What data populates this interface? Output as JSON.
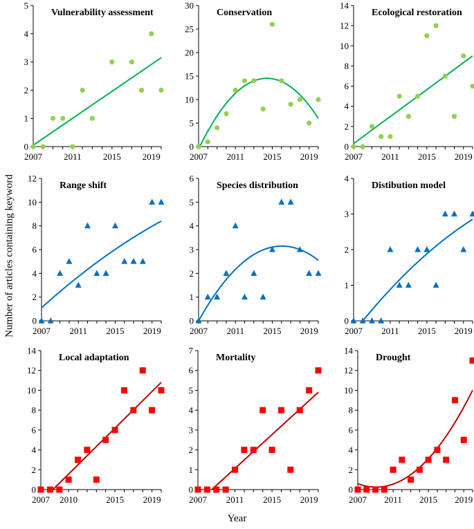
{
  "figure": {
    "ylabel": "Number of articles containing keyword",
    "xlabel": "Year"
  },
  "chart_data": [
    {
      "type": "scatter",
      "title": "Vulnerability assessment",
      "marker": "circle",
      "color": "#92D050",
      "trend_color": "#00B050",
      "x": [
        2007,
        2008,
        2009,
        2010,
        2011,
        2012,
        2013,
        2015,
        2017,
        2018,
        2019,
        2020
      ],
      "y": [
        0,
        0,
        1,
        1,
        0,
        2,
        1,
        3,
        3,
        2,
        4,
        2
      ],
      "trend": {
        "kind": "linear",
        "points": [
          [
            2007,
            0.05
          ],
          [
            2020,
            3.15
          ]
        ]
      },
      "xlim": [
        2007,
        2020
      ],
      "ylim": [
        0,
        5
      ],
      "yticks": [
        0,
        1,
        2,
        3,
        4,
        5
      ],
      "xticks": [
        2007,
        2011,
        2015,
        2019
      ],
      "xticklabels": [
        "2007",
        "2011",
        "2015",
        "2019"
      ]
    },
    {
      "type": "scatter",
      "title": "Conservation",
      "marker": "circle",
      "color": "#92D050",
      "trend_color": "#00B050",
      "x": [
        2007,
        2008,
        2009,
        2010,
        2011,
        2012,
        2013,
        2014,
        2015,
        2016,
        2017,
        2018,
        2019,
        2020
      ],
      "y": [
        0,
        1,
        4,
        7,
        12,
        14,
        14,
        8,
        26,
        14,
        9,
        10,
        5,
        10
      ],
      "trend": {
        "kind": "quadratic",
        "points": [
          [
            2007,
            -0.5
          ],
          [
            2014.7,
            14.5
          ],
          [
            2020,
            6
          ]
        ]
      },
      "xlim": [
        2007,
        2020
      ],
      "ylim": [
        0,
        30
      ],
      "yticks": [
        0,
        5,
        10,
        15,
        20,
        25,
        30
      ],
      "xticks": [
        2007,
        2011,
        2015,
        2019
      ],
      "xticklabels": [
        "2007",
        "2011",
        "2015",
        "2019"
      ]
    },
    {
      "type": "scatter",
      "title": "Ecological restoration",
      "marker": "circle",
      "color": "#92D050",
      "trend_color": "#00B050",
      "x": [
        2007,
        2008,
        2009,
        2010,
        2011,
        2012,
        2013,
        2014,
        2015,
        2016,
        2017,
        2018,
        2019,
        2020
      ],
      "y": [
        0,
        0,
        2,
        1,
        1,
        5,
        3,
        5,
        11,
        12,
        7,
        3,
        9,
        6
      ],
      "trend": {
        "kind": "linear",
        "points": [
          [
            2007,
            0.3
          ],
          [
            2020,
            9.0
          ]
        ]
      },
      "xlim": [
        2007,
        2020
      ],
      "ylim": [
        0,
        14
      ],
      "yticks": [
        0,
        2,
        4,
        6,
        8,
        10,
        12,
        14
      ],
      "xticks": [
        2007,
        2011,
        2015,
        2019
      ],
      "xticklabels": [
        "2007",
        "2011",
        "2015",
        "2019"
      ]
    },
    {
      "type": "scatter",
      "title": "Range shift",
      "marker": "triangle",
      "color": "#0070C0",
      "trend_color": "#0070C0",
      "x": [
        2007,
        2008,
        2009,
        2010,
        2011,
        2012,
        2013,
        2014,
        2015,
        2016,
        2017,
        2018,
        2019,
        2020
      ],
      "y": [
        0,
        0,
        4,
        5,
        3,
        8,
        4,
        4,
        8,
        5,
        5,
        5,
        10,
        10
      ],
      "trend": {
        "kind": "quadratic",
        "points": [
          [
            2007,
            1.1
          ],
          [
            2013.5,
            5.2
          ],
          [
            2020,
            8.4
          ]
        ]
      },
      "xlim": [
        2007,
        2020
      ],
      "ylim": [
        0,
        12
      ],
      "yticks": [
        0,
        2,
        4,
        6,
        8,
        10,
        12
      ],
      "xticks": [
        2007,
        2011,
        2015,
        2019
      ],
      "xticklabels": [
        "2007",
        "2011",
        "2015",
        "2019"
      ]
    },
    {
      "type": "scatter",
      "title": "Species distribution",
      "marker": "triangle",
      "color": "#0070C0",
      "trend_color": "#0070C0",
      "x": [
        2007,
        2008,
        2009,
        2010,
        2011,
        2012,
        2013,
        2014,
        2015,
        2016,
        2017,
        2018,
        2019,
        2020
      ],
      "y": [
        0,
        1,
        1,
        2,
        4,
        1,
        2,
        1,
        3,
        5,
        5,
        3,
        2,
        2
      ],
      "trend": {
        "kind": "quadratic",
        "points": [
          [
            2007,
            0.0
          ],
          [
            2016,
            3.15
          ],
          [
            2020,
            2.55
          ]
        ]
      },
      "xlim": [
        2007,
        2020
      ],
      "ylim": [
        0,
        6
      ],
      "yticks": [
        0,
        1,
        2,
        3,
        4,
        5,
        6
      ],
      "xticks": [
        2007,
        2011,
        2015,
        2019
      ],
      "xticklabels": [
        "2007",
        "2011",
        "2015",
        "2019"
      ]
    },
    {
      "type": "scatter",
      "title": "Distibution model",
      "marker": "triangle",
      "color": "#0070C0",
      "trend_color": "#0070C0",
      "x": [
        2007,
        2008,
        2009,
        2010,
        2011,
        2012,
        2013,
        2014,
        2015,
        2016,
        2017,
        2018,
        2019,
        2020
      ],
      "y": [
        0,
        0,
        0,
        0,
        2,
        1,
        1,
        2,
        2,
        1,
        3,
        3,
        2,
        3
      ],
      "trend": {
        "kind": "quadratic",
        "points": [
          [
            2008,
            0.0
          ],
          [
            2014,
            1.65
          ],
          [
            2020,
            2.85
          ]
        ]
      },
      "xlim": [
        2007,
        2020
      ],
      "ylim": [
        0,
        4
      ],
      "yticks": [
        0,
        1,
        2,
        3,
        4
      ],
      "xticks": [
        2007,
        2011,
        2015,
        2019
      ],
      "xticklabels": [
        "2007",
        "2011",
        "2015",
        "2019"
      ]
    },
    {
      "type": "scatter",
      "title": "Local adaptation",
      "marker": "square",
      "color": "#FF0000",
      "trend_color": "#C00000",
      "x": [
        2007,
        2008,
        2009,
        2010,
        2011,
        2012,
        2013,
        2014,
        2015,
        2016,
        2017,
        2018,
        2019,
        2020
      ],
      "y": [
        0,
        0,
        0,
        1,
        3,
        4,
        1,
        5,
        6,
        10,
        8,
        12,
        8,
        10
      ],
      "trend": {
        "kind": "linear",
        "points": [
          [
            2008.3,
            0
          ],
          [
            2020,
            10.8
          ]
        ]
      },
      "xlim": [
        2007,
        2020
      ],
      "ylim": [
        0,
        14
      ],
      "yticks": [
        0,
        2,
        4,
        6,
        8,
        10,
        12,
        14
      ],
      "xticks": [
        2007,
        2010,
        2015,
        2019
      ],
      "xticklabels": [
        "2007",
        "2010",
        "2015",
        "2019"
      ]
    },
    {
      "type": "scatter",
      "title": "Mortality",
      "marker": "square",
      "color": "#FF0000",
      "trend_color": "#C00000",
      "x": [
        2007,
        2008,
        2009,
        2010,
        2011,
        2012,
        2013,
        2014,
        2015,
        2016,
        2017,
        2018,
        2019,
        2020
      ],
      "y": [
        0,
        0,
        0,
        0,
        1,
        2,
        2,
        4,
        2,
        4,
        1,
        4,
        5,
        6
      ],
      "trend": {
        "kind": "linear",
        "points": [
          [
            2008.5,
            0
          ],
          [
            2020,
            4.9
          ]
        ]
      },
      "xlim": [
        2007,
        2020
      ],
      "ylim": [
        0,
        7
      ],
      "yticks": [
        0,
        1,
        2,
        3,
        4,
        5,
        6,
        7
      ],
      "xticks": [
        2007,
        2011,
        2015,
        2019
      ],
      "xticklabels": [
        "2007",
        "2011",
        "2015",
        "2019"
      ]
    },
    {
      "type": "scatter",
      "title": "Drought",
      "marker": "square",
      "color": "#FF0000",
      "trend_color": "#C00000",
      "x": [
        2007,
        2008,
        2009,
        2010,
        2011,
        2012,
        2013,
        2014,
        2015,
        2016,
        2017,
        2018,
        2019,
        2020
      ],
      "y": [
        0,
        0,
        0,
        0,
        2,
        3,
        1,
        2,
        3,
        4,
        3,
        9,
        5,
        13
      ],
      "trend": {
        "kind": "quadratic",
        "points": [
          [
            2007,
            0.6
          ],
          [
            2009,
            0.25
          ],
          [
            2020,
            10
          ]
        ]
      },
      "xlim": [
        2007,
        2020
      ],
      "ylim": [
        0,
        14
      ],
      "yticks": [
        0,
        2,
        4,
        6,
        8,
        10,
        12,
        14
      ],
      "xticks": [
        2007,
        2011,
        2015,
        2019
      ],
      "xticklabels": [
        "2007",
        "2011",
        "2015",
        "2019"
      ]
    }
  ]
}
